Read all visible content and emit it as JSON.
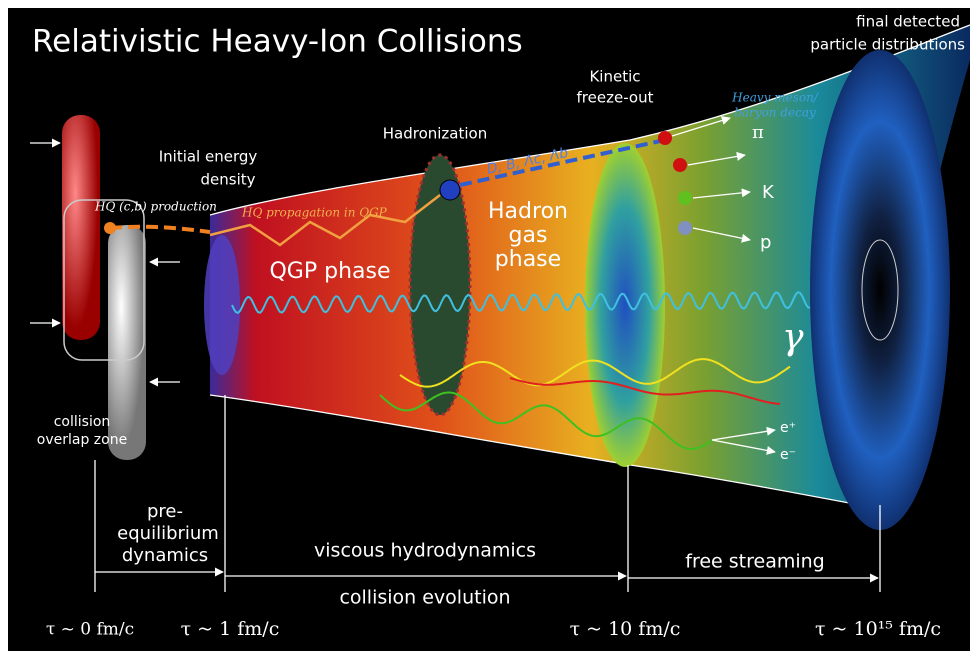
{
  "title": "Relativistic Heavy-Ion Collisions",
  "final_detected": [
    "final detected",
    "particle distributions"
  ],
  "kinetic_freeze_out": [
    "Kinetic",
    "freeze-out"
  ],
  "heavy_decay": [
    "Heavy meson/",
    "baryon decay"
  ],
  "hadronization": "Hadronization",
  "initial_energy": [
    "Initial energy",
    "density"
  ],
  "hq_production": "HQ (c,b) production",
  "hq_propagation": "HQ propagation in QGP",
  "qgp_phase": "QGP phase",
  "hadron_gas": [
    "Hadron",
    "gas",
    "phase"
  ],
  "heavy_hadrons": "D, B, Λc, Λb",
  "particles": {
    "pi": "π",
    "k": "K",
    "p": "p",
    "gamma": "γ",
    "e_plus": "e⁺",
    "e_minus": "e⁻"
  },
  "overlap_zone": [
    "collision",
    "overlap zone"
  ],
  "pre_equilibrium": [
    "pre-",
    "equilibrium",
    "dynamics"
  ],
  "viscous": "viscous hydrodynamics",
  "free_streaming": "free streaming",
  "collision_evolution": "collision evolution",
  "times": [
    "τ ~ 0 fm/c",
    "τ ~ 1 fm/c",
    "τ ~ 10 fm/c",
    "τ ~ 10¹⁵ fm/c"
  ]
}
